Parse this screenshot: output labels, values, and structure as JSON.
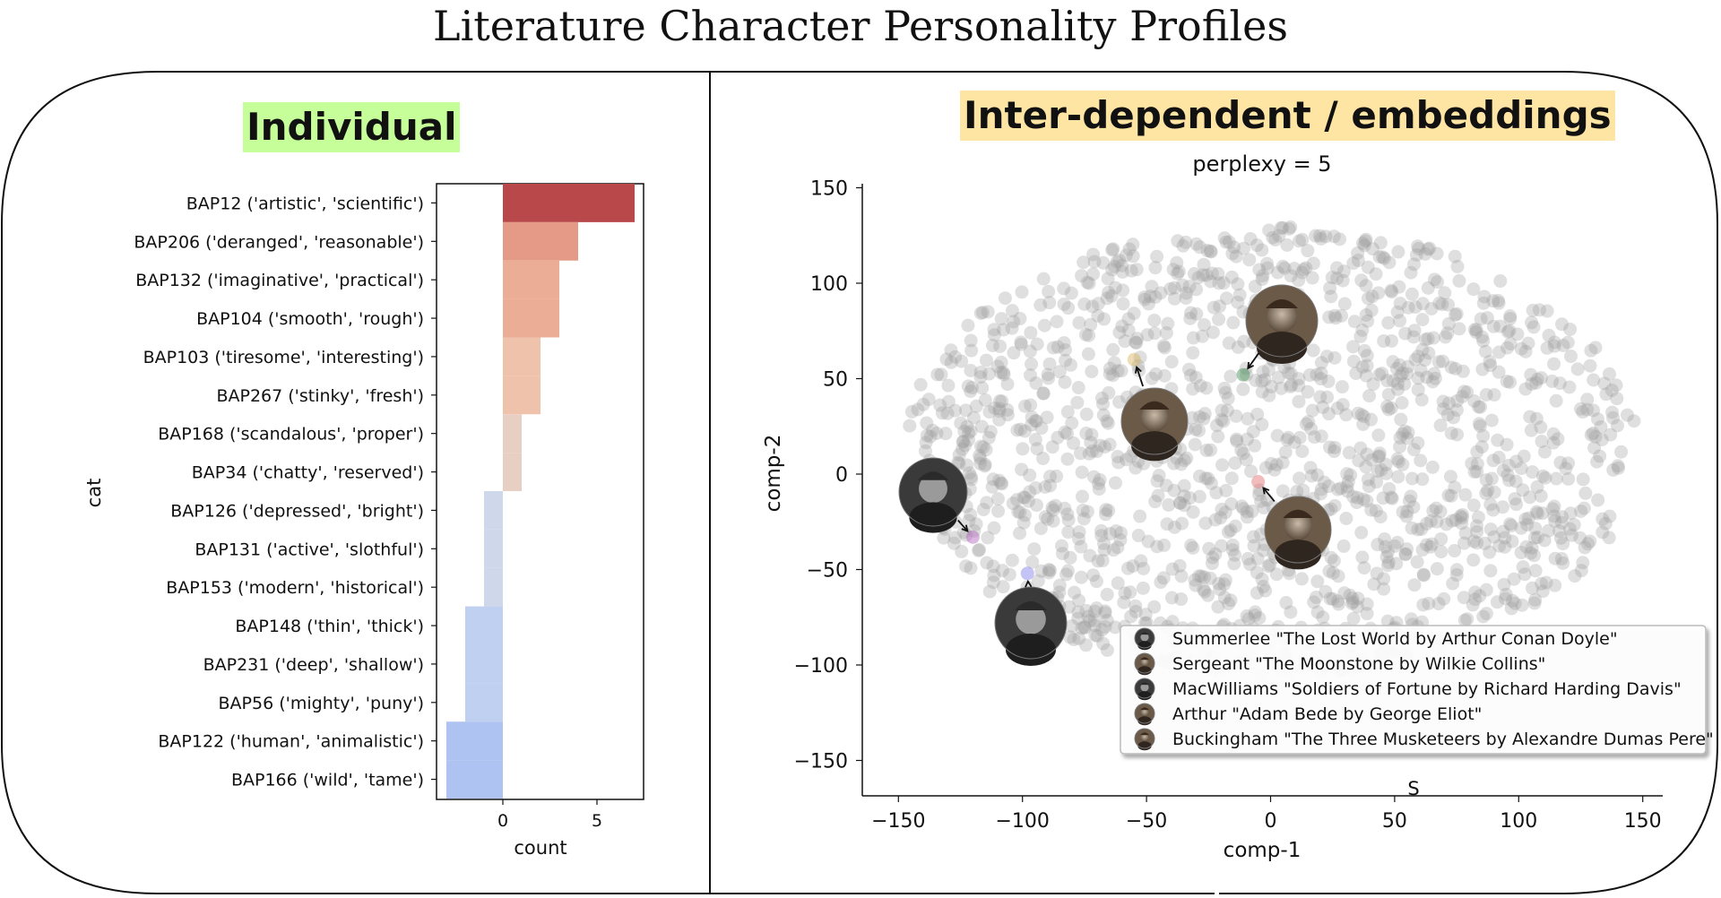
{
  "figure": {
    "title": "Literature Character Personality Profiles",
    "left_panel_title": "Individual",
    "right_panel_title": "Inter-dependent / embeddings",
    "colors": {
      "left_title_bg": "#c6ff9a",
      "right_title_bg": "#ffe5a3",
      "point_gray": "#9a9a9a"
    }
  },
  "chart_data": [
    {
      "type": "bar",
      "orientation": "horizontal",
      "xlabel": "count",
      "ylabel": "cat",
      "xlim": [
        -3.5,
        7.5
      ],
      "xticks": [
        0,
        5
      ],
      "categories": [
        "BAP12 ('artistic', 'scientific')",
        "BAP206 ('deranged', 'reasonable')",
        "BAP132 ('imaginative', 'practical')",
        "BAP104 ('smooth', 'rough')",
        "BAP103 ('tiresome', 'interesting')",
        "BAP267 ('stinky', 'fresh')",
        "BAP168 ('scandalous', 'proper')",
        "BAP34 ('chatty', 'reserved')",
        "BAP126 ('depressed', 'bright')",
        "BAP131 ('active', 'slothful')",
        "BAP153 ('modern', 'historical')",
        "BAP148 ('thin', 'thick')",
        "BAP231 ('deep', 'shallow')",
        "BAP56 ('mighty', 'puny')",
        "BAP122 ('human', 'animalistic')",
        "BAP166 ('wild', 'tame')"
      ],
      "values": [
        7,
        4,
        3,
        3,
        2,
        2,
        1,
        1,
        -1,
        -1,
        -1,
        -2,
        -2,
        -2,
        -3,
        -3
      ],
      "colors": [
        "#b9484b",
        "#e49a86",
        "#ebad96",
        "#ebad96",
        "#efc2ac",
        "#efc2ac",
        "#e8cfc4",
        "#e8cfc4",
        "#cfd8ea",
        "#cfd8ea",
        "#cfd8ea",
        "#bfd0f0",
        "#bfd0f0",
        "#bfd0f0",
        "#aec3f1",
        "#aec3f1"
      ]
    },
    {
      "type": "scatter",
      "title": "perplexy = 5",
      "xlabel": "comp-1",
      "ylabel": "comp-2",
      "xlim": [
        -165,
        160
      ],
      "ylim": [
        -170,
        155
      ],
      "xticks": [
        -150,
        -100,
        -50,
        0,
        50,
        100,
        150
      ],
      "yticks": [
        150,
        100,
        50,
        0,
        -50,
        -100,
        -150
      ],
      "background_points": "about 1500 semi-transparent gray points filling an ellipse centred near (0, 20), roughly x -150..150 and y -110..130",
      "highlighted": [
        {
          "label": "Buckingham \"The Three Musketeers by Alexandre Dumas Pere\"",
          "x": -11,
          "y": 52,
          "color": "#3f8f4f",
          "icon": "portrait-buckingham-icon"
        },
        {
          "label": "Sergeant \"The Moonstone by Wilkie Collins\"",
          "x": -55,
          "y": 60,
          "color": "#d9b15a",
          "icon": "portrait-sergeant-icon"
        },
        {
          "label": "Arthur \"Adam Bede by George Eliot\"",
          "x": -5,
          "y": -4,
          "color": "#e06a6a",
          "icon": "portrait-arthur-icon"
        },
        {
          "label": "MacWilliams \"Soldiers of Fortune by Richard Harding Davis\"",
          "x": -120,
          "y": -33,
          "color": "#b05fbf",
          "icon": "portrait-macwilliams-icon"
        },
        {
          "label": "Summerlee \"The Lost World by Arthur Conan Doyle\"",
          "x": -98,
          "y": -52,
          "color": "#7a7ae8",
          "icon": "portrait-summerlee-icon"
        }
      ],
      "legend": {
        "position": "lower-right",
        "entries": [
          "Summerlee \"The Lost World by Arthur Conan Doyle\"",
          "Sergeant \"The Moonstone by Wilkie Collins\"",
          "MacWilliams \"Soldiers of Fortune by Richard Harding Davis\"",
          "Arthur \"Adam Bede by George Eliot\"",
          "Buckingham \"The Three Musketeers by Alexandre Dumas Pere\""
        ],
        "icons": [
          "portrait-summerlee-icon",
          "portrait-sergeant-icon",
          "portrait-macwilliams-icon",
          "portrait-arthur-icon",
          "portrait-buckingham-icon"
        ]
      },
      "stray_text": "S"
    }
  ]
}
